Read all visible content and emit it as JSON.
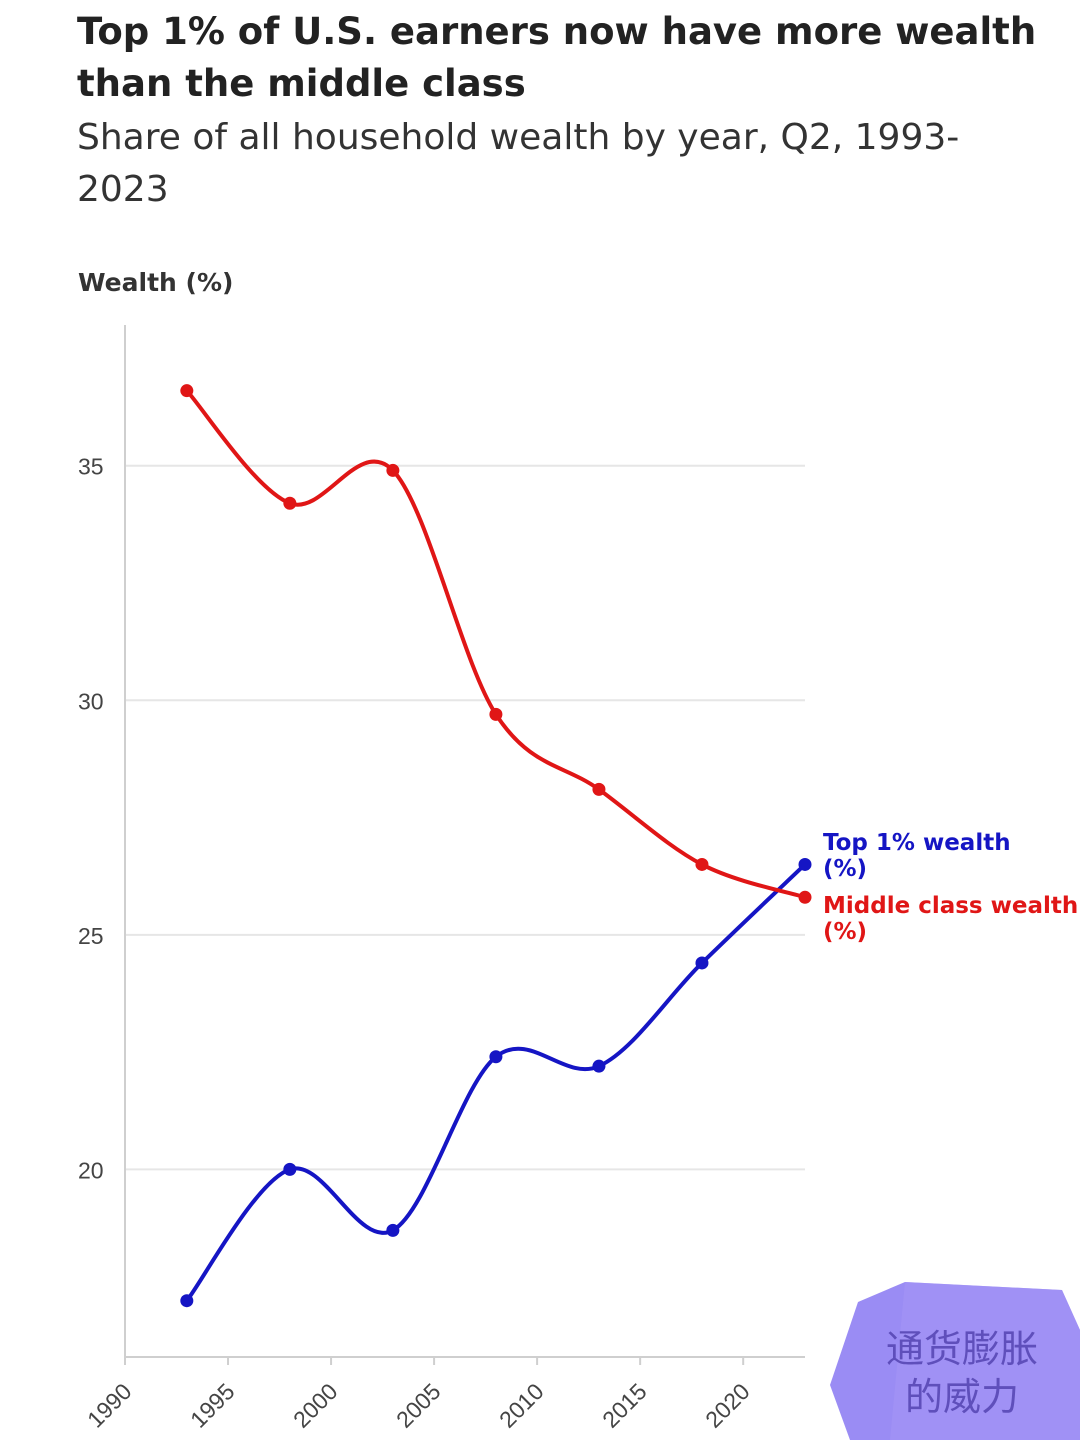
{
  "title": "Top 1% of U.S. earners now have more wealth than the middle class",
  "subtitle": "Share of all household wealth by year, Q2, 1993-2023",
  "watermark": {
    "line1": "通货膨胀",
    "line2": "的威力"
  },
  "colors": {
    "top1": "#1515c4",
    "middle": "#e01616",
    "grid": "#e6e6e6",
    "axis": "#cfcfcf",
    "tick_text": "#444444",
    "watermark": "#9b8cf0"
  },
  "chart_data": {
    "type": "line",
    "ylabel": "Wealth (%)",
    "xlabel": "",
    "x": [
      1993,
      1998,
      2003,
      2008,
      2013,
      2018,
      2023
    ],
    "xlim": [
      1990,
      2023
    ],
    "ylim": [
      16,
      38
    ],
    "xticks": [
      "1990",
      "1995",
      "2000",
      "2005",
      "2010",
      "2015",
      "2020"
    ],
    "yticks": [
      "20",
      "25",
      "30",
      "35"
    ],
    "grid": true,
    "legend": "direct labels at line ends (right)",
    "series": [
      {
        "name": "Top 1% wealth (%)",
        "values": [
          17.2,
          20.0,
          18.7,
          22.4,
          22.2,
          24.4,
          26.5
        ]
      },
      {
        "name": "Middle class wealth (%)",
        "values": [
          36.6,
          34.2,
          34.9,
          29.7,
          28.1,
          26.5,
          25.8
        ]
      }
    ]
  }
}
